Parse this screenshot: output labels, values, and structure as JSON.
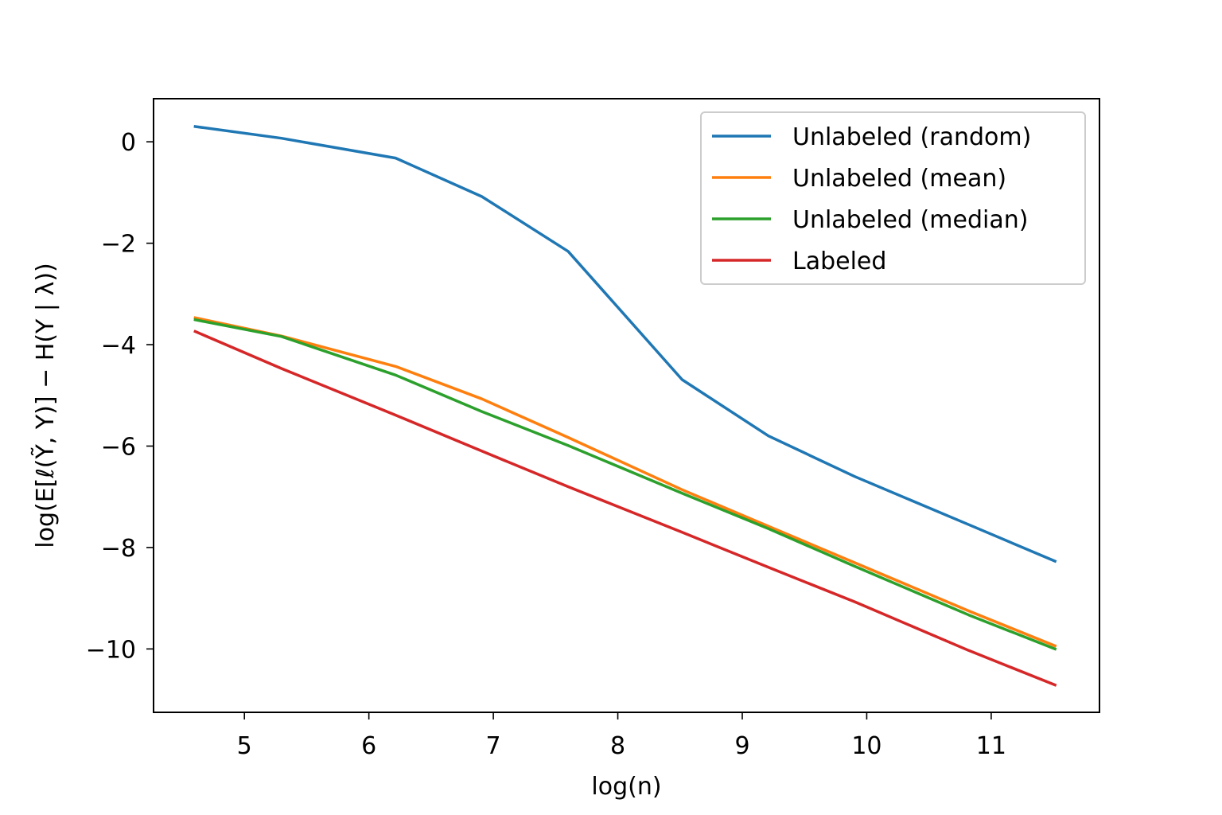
{
  "chart_data": {
    "type": "line",
    "title": "",
    "xlabel": "log(n)",
    "ylabel": "log(E[ℓ(Ỹ, Y)] − H(Y | λ))",
    "xlim": [
      4.27,
      11.87
    ],
    "ylim": [
      -11.25,
      0.85
    ],
    "x_ticks": [
      5,
      6,
      7,
      8,
      9,
      10,
      11
    ],
    "x_tick_labels": [
      "5",
      "6",
      "7",
      "8",
      "9",
      "10",
      "11"
    ],
    "y_ticks": [
      0,
      -2,
      -4,
      -6,
      -8,
      -10
    ],
    "y_tick_labels": [
      "0",
      "−2",
      "−4",
      "−6",
      "−8",
      "−10"
    ],
    "grid": false,
    "legend_position": "top-right",
    "x": [
      4.605,
      5.298,
      6.215,
      6.908,
      7.601,
      8.517,
      9.21,
      9.903,
      10.82,
      11.513
    ],
    "series": [
      {
        "name": "Unlabeled (random)",
        "color": "#1f77b4",
        "values": [
          0.3,
          0.07,
          -0.32,
          -1.08,
          -2.16,
          -4.69,
          -5.8,
          -6.6,
          -7.55,
          -8.27
        ]
      },
      {
        "name": "Unlabeled (mean)",
        "color": "#ff7f0e",
        "values": [
          -3.47,
          -3.83,
          -4.43,
          -5.07,
          -5.83,
          -6.86,
          -7.58,
          -8.3,
          -9.25,
          -9.94
        ]
      },
      {
        "name": "Unlabeled (median)",
        "color": "#2ca02c",
        "values": [
          -3.51,
          -3.84,
          -4.6,
          -5.32,
          -5.99,
          -6.93,
          -7.63,
          -8.37,
          -9.33,
          -10.0
        ]
      },
      {
        "name": "Labeled",
        "color": "#d62728",
        "values": [
          -3.74,
          -4.47,
          -5.39,
          -6.1,
          -6.8,
          -7.7,
          -8.39,
          -9.07,
          -10.03,
          -10.71
        ]
      }
    ]
  }
}
